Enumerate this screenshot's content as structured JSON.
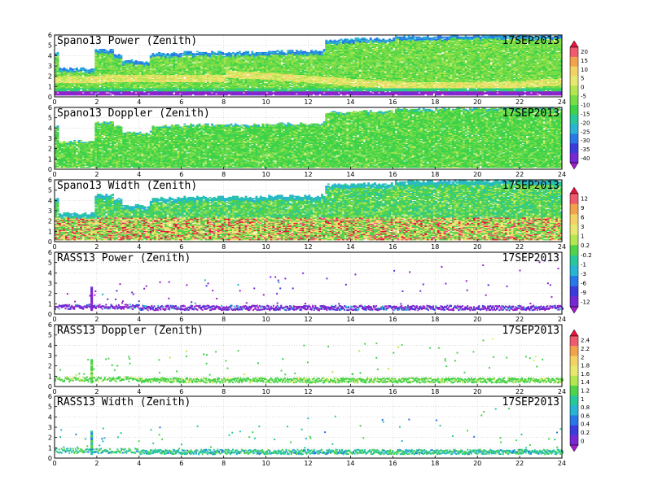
{
  "figure": {
    "date_label": "17SEP2013"
  },
  "chart_data": [
    {
      "type": "heatmap",
      "title": "Spano13 Power (Zenith)",
      "date": "17SEP2013",
      "xlim": [
        0,
        24
      ],
      "ylim": [
        0,
        6
      ],
      "x_ticks": [
        "0",
        "2",
        "4",
        "6",
        "8",
        "10",
        "12",
        "14",
        "16",
        "18",
        "20",
        "22",
        "24"
      ],
      "y_ticks": [
        "0",
        "1",
        "2",
        "3",
        "4",
        "5",
        "6"
      ],
      "data_top_km": [
        [
          0,
          4.2
        ],
        [
          0.15,
          2.7
        ],
        [
          1.75,
          2.7
        ],
        [
          1.9,
          4.5
        ],
        [
          2.8,
          4.1
        ],
        [
          3.2,
          3.5
        ],
        [
          4.1,
          3.4
        ],
        [
          4.5,
          3.9
        ],
        [
          4.6,
          4.2
        ],
        [
          6,
          4.3
        ],
        [
          8,
          4.3
        ],
        [
          10,
          4.4
        ],
        [
          12,
          4.4
        ],
        [
          12.5,
          4.5
        ],
        [
          12.7,
          5.5
        ],
        [
          14,
          5.6
        ],
        [
          16,
          5.8
        ],
        [
          18,
          5.9
        ],
        [
          22,
          5.9
        ],
        [
          24,
          5.9
        ]
      ],
      "colorbar": "power"
    },
    {
      "type": "heatmap",
      "title": "Spano13 Doppler (Zenith)",
      "date": "17SEP2013",
      "xlim": [
        0,
        24
      ],
      "ylim": [
        0,
        6
      ],
      "x_ticks": [
        "0",
        "2",
        "4",
        "6",
        "8",
        "10",
        "12",
        "14",
        "16",
        "18",
        "20",
        "22",
        "24"
      ],
      "y_ticks": [
        "0",
        "1",
        "2",
        "3",
        "4",
        "5",
        "6"
      ],
      "data_top_km": [
        [
          0,
          4.2
        ],
        [
          0.15,
          2.7
        ],
        [
          1.75,
          2.7
        ],
        [
          1.9,
          4.5
        ],
        [
          2.8,
          4.1
        ],
        [
          3.2,
          3.5
        ],
        [
          4.1,
          3.4
        ],
        [
          4.5,
          3.9
        ],
        [
          4.6,
          4.2
        ],
        [
          6,
          4.3
        ],
        [
          8,
          4.3
        ],
        [
          10,
          4.4
        ],
        [
          12,
          4.4
        ],
        [
          12.5,
          4.5
        ],
        [
          12.7,
          5.5
        ],
        [
          14,
          5.6
        ],
        [
          16,
          5.8
        ],
        [
          18,
          5.9
        ],
        [
          22,
          5.9
        ],
        [
          24,
          5.9
        ]
      ],
      "colorbar": "doppler_power"
    },
    {
      "type": "heatmap",
      "title": "Spano13 Width (Zenith)",
      "date": "17SEP2013",
      "xlim": [
        0,
        24
      ],
      "ylim": [
        0,
        6
      ],
      "x_ticks": [
        "0",
        "2",
        "4",
        "6",
        "8",
        "10",
        "12",
        "14",
        "16",
        "18",
        "20",
        "22",
        "24"
      ],
      "y_ticks": [
        "0",
        "1",
        "2",
        "3",
        "4",
        "5",
        "6"
      ],
      "data_top_km": [
        [
          0,
          4.2
        ],
        [
          0.15,
          2.7
        ],
        [
          1.75,
          2.7
        ],
        [
          1.9,
          4.5
        ],
        [
          2.8,
          4.1
        ],
        [
          3.2,
          3.5
        ],
        [
          4.1,
          3.4
        ],
        [
          4.5,
          3.9
        ],
        [
          4.6,
          4.2
        ],
        [
          6,
          4.3
        ],
        [
          8,
          4.3
        ],
        [
          10,
          4.4
        ],
        [
          12,
          4.4
        ],
        [
          12.5,
          4.5
        ],
        [
          12.7,
          5.5
        ],
        [
          14,
          5.6
        ],
        [
          16,
          5.8
        ],
        [
          18,
          5.9
        ],
        [
          22,
          5.9
        ],
        [
          24,
          5.9
        ]
      ],
      "colorbar": "width"
    },
    {
      "type": "scatter",
      "title": "RASS13 Power (Zenith)",
      "date": "17SEP2013",
      "xlim": [
        0,
        24
      ],
      "ylim": [
        0,
        6
      ],
      "x_ticks": [
        "0",
        "2",
        "4",
        "6",
        "8",
        "10",
        "12",
        "14",
        "16",
        "18",
        "20",
        "22",
        "24"
      ],
      "y_ticks": [
        "0",
        "1",
        "2",
        "3",
        "4",
        "5",
        "6"
      ],
      "colorbar": "rass_power"
    },
    {
      "type": "scatter",
      "title": "RASS13 Doppler (Zenith)",
      "date": "17SEP2013",
      "xlim": [
        0,
        24
      ],
      "ylim": [
        0,
        6
      ],
      "x_ticks": [
        "0",
        "2",
        "4",
        "6",
        "8",
        "10",
        "12",
        "14",
        "16",
        "18",
        "20",
        "22",
        "24"
      ],
      "y_ticks": [
        "0",
        "1",
        "2",
        "3",
        "4",
        "5",
        "6"
      ],
      "colorbar": "rass_doppler"
    },
    {
      "type": "scatter",
      "title": "RASS13 Width (Zenith)",
      "date": "17SEP2013",
      "xlim": [
        0,
        24
      ],
      "ylim": [
        0,
        6
      ],
      "x_ticks": [
        "0",
        "2",
        "4",
        "6",
        "8",
        "10",
        "12",
        "14",
        "16",
        "18",
        "20",
        "22",
        "24"
      ],
      "y_ticks": [
        "0",
        "1",
        "2",
        "3",
        "4",
        "5",
        "6"
      ],
      "colorbar": "rass_doppler"
    }
  ],
  "colorbars": {
    "power": {
      "labels": [
        "20",
        "15",
        "10",
        "5",
        "0",
        "-5",
        "-10",
        "-15",
        "-20",
        "-25",
        "-30",
        "-35",
        "-40"
      ],
      "colors": [
        "#e8143c",
        "#f05a6e",
        "#f2a24c",
        "#f2d264",
        "#e8e870",
        "#b4e650",
        "#78dc46",
        "#3cd24a",
        "#28c89a",
        "#28b4d2",
        "#2878e6",
        "#3c3cdc",
        "#7828d2",
        "#a01ec8"
      ]
    },
    "width": {
      "labels": [
        "12",
        "9",
        "6",
        "3",
        "1",
        "0.2",
        "-0.2",
        "-1",
        "-3",
        "-6",
        "-9",
        "-12"
      ],
      "colors": [
        "#e8143c",
        "#f05a6e",
        "#f2a24c",
        "#f2d264",
        "#e8e870",
        "#b4e650",
        "#50d24a",
        "#28c89a",
        "#28b4d2",
        "#2878e6",
        "#3c3cdc",
        "#7828d2",
        "#a01ec8"
      ]
    },
    "rass_doppler": {
      "labels": [
        "2.4",
        "2.2",
        "2",
        "1.8",
        "1.6",
        "1.4",
        "1.2",
        "1",
        "0.8",
        "0.6",
        "0.4",
        "0.2",
        "0"
      ],
      "colors": [
        "#e8143c",
        "#f05a6e",
        "#f2a24c",
        "#f2d264",
        "#e8e870",
        "#b4e650",
        "#50d24a",
        "#28c89a",
        "#28b4d2",
        "#2878e6",
        "#3c3cdc",
        "#7828d2",
        "#a01ec8"
      ]
    }
  }
}
